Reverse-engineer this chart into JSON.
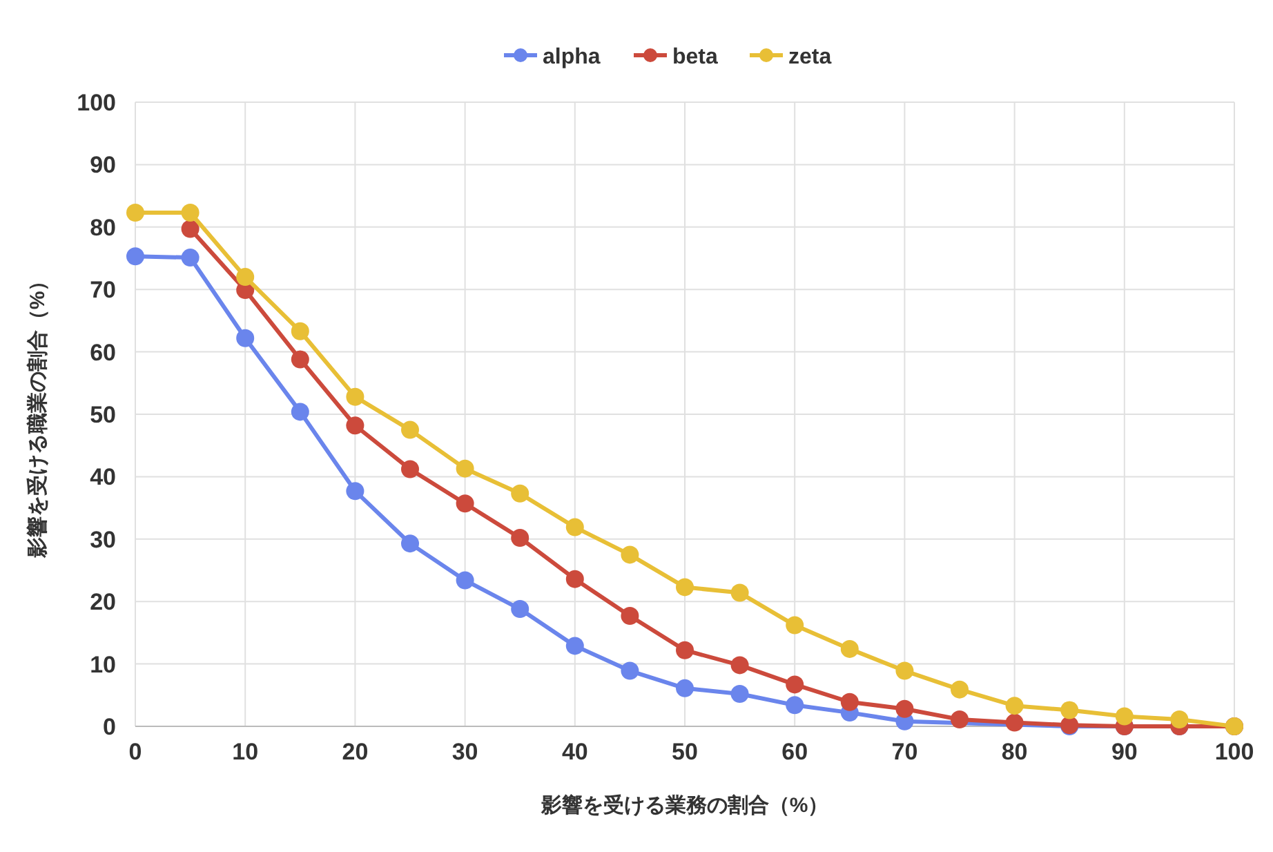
{
  "chart_data": {
    "type": "line",
    "xlabel": "影響を受ける業務の割合（%）",
    "ylabel": "影響を受ける職業の割合（%）",
    "x": [
      0,
      5,
      10,
      15,
      20,
      25,
      30,
      35,
      40,
      45,
      50,
      55,
      60,
      65,
      70,
      75,
      80,
      85,
      90,
      95,
      100
    ],
    "series": [
      {
        "name": "alpha",
        "color": "#6a85ec",
        "values": [
          75.3,
          75.1,
          62.2,
          50.4,
          37.7,
          29.3,
          23.4,
          18.8,
          12.9,
          8.9,
          6.1,
          5.2,
          3.4,
          2.2,
          0.8,
          null,
          null,
          0,
          0,
          0,
          0
        ]
      },
      {
        "name": "beta",
        "color": "#cc4a3c",
        "values": [
          null,
          79.7,
          69.9,
          58.8,
          48.2,
          41.2,
          35.7,
          30.2,
          23.6,
          17.7,
          12.2,
          9.8,
          6.7,
          3.9,
          2.8,
          1.1,
          0.6,
          0.2,
          0,
          0,
          0
        ]
      },
      {
        "name": "zeta",
        "color": "#e8bf36",
        "values": [
          82.3,
          82.3,
          72,
          63.3,
          52.8,
          47.5,
          41.3,
          37.3,
          31.9,
          27.5,
          22.3,
          21.4,
          16.2,
          12.4,
          8.9,
          5.9,
          3.3,
          2.6,
          1.6,
          1.1,
          0
        ]
      }
    ],
    "xlim": [
      0,
      100
    ],
    "xticks": [
      0,
      10,
      20,
      30,
      40,
      50,
      60,
      70,
      80,
      90,
      100
    ],
    "ylim": [
      0,
      100
    ],
    "yticks": [
      0,
      10,
      20,
      30,
      40,
      50,
      60,
      70,
      80,
      90,
      100
    ],
    "grid": true,
    "legend": "top",
    "marker": "circle",
    "line_style": "solid"
  }
}
